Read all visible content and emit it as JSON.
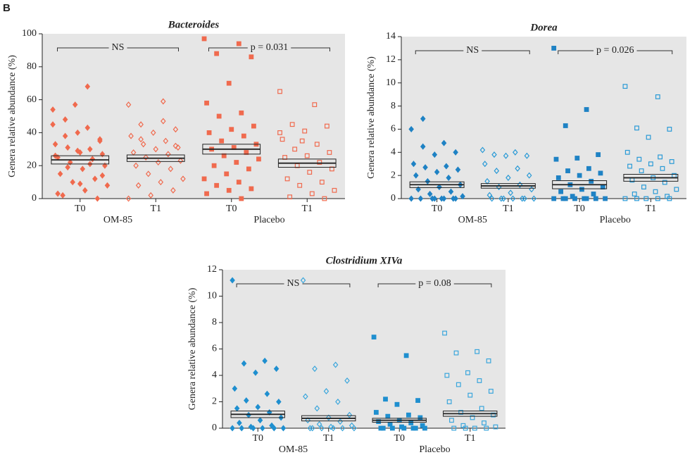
{
  "panel_label": "B",
  "chart_data": [
    {
      "type": "strip",
      "title": "Bacteroides",
      "y_label": "Genera relative abundance (%)",
      "ylim": [
        0,
        100
      ],
      "yticks": [
        0,
        20,
        40,
        60,
        80,
        100
      ],
      "categories": [
        "T0",
        "T1",
        "T0",
        "T1"
      ],
      "group_labels": [
        "OM-85",
        "Placebo"
      ],
      "comparisons": [
        {
          "groups": [
            0,
            1
          ],
          "label": "NS"
        },
        {
          "groups": [
            2,
            3
          ],
          "label": "p = 0.031"
        }
      ],
      "series": [
        {
          "color": "#f06a4e",
          "marker": "diamond",
          "filled": true,
          "mean": 23.5,
          "sem": 2.5,
          "values": [
            45,
            43,
            38,
            36,
            40,
            33,
            30,
            31,
            27,
            28,
            25,
            24,
            22,
            20,
            18,
            15,
            12,
            10,
            8,
            5,
            2,
            0,
            57,
            54,
            68,
            48,
            35,
            29,
            26,
            21,
            19,
            14,
            9,
            3
          ]
        },
        {
          "color": "#f06a4e",
          "marker": "diamond",
          "filled": false,
          "mean": 24.5,
          "sem": 2,
          "values": [
            57,
            59,
            45,
            42,
            40,
            38,
            35,
            33,
            31,
            30,
            28,
            27,
            25,
            23,
            22,
            20,
            18,
            15,
            12,
            10,
            8,
            5,
            2,
            0,
            47,
            36,
            32
          ]
        },
        {
          "color": "#f06a4e",
          "marker": "square",
          "filled": true,
          "mean": 30,
          "sem": 3,
          "values": [
            97,
            94,
            88,
            86,
            70,
            58,
            52,
            50,
            44,
            42,
            40,
            38,
            35,
            33,
            31,
            30,
            28,
            26,
            24,
            22,
            20,
            18,
            15,
            12,
            10,
            8,
            6,
            5,
            3,
            0
          ]
        },
        {
          "color": "#f06a4e",
          "marker": "square",
          "filled": false,
          "mean": 21.5,
          "sem": 2.5,
          "values": [
            65,
            57,
            45,
            44,
            41,
            36,
            33,
            30,
            28,
            26,
            25,
            22,
            20,
            18,
            16,
            12,
            10,
            8,
            5,
            3,
            1,
            0,
            35,
            40
          ]
        }
      ]
    },
    {
      "type": "strip",
      "title": "Dorea",
      "y_label": "Genera relative abundance (%)",
      "ylim": [
        0,
        14
      ],
      "yticks": [
        0,
        2,
        4,
        6,
        8,
        10,
        12,
        14
      ],
      "categories": [
        "T0",
        "T1",
        "T0",
        "T1"
      ],
      "group_labels": [
        "OM-85",
        "Placebo"
      ],
      "comparisons": [
        {
          "groups": [
            0,
            1
          ],
          "label": "NS"
        },
        {
          "groups": [
            2,
            3
          ],
          "label": "p = 0.026"
        }
      ],
      "series": [
        {
          "color": "#1f82c4",
          "marker": "diamond",
          "filled": true,
          "mean": 1.2,
          "sem": 0.25,
          "values": [
            6,
            4.8,
            4.5,
            4,
            3.8,
            3,
            2.8,
            2.7,
            2.5,
            2.3,
            2,
            1.8,
            1.5,
            1.2,
            1,
            0.8,
            0.6,
            0.4,
            0.2,
            0,
            0,
            0,
            0,
            0,
            0,
            6.9,
            0,
            0
          ]
        },
        {
          "color": "#2a9ad6",
          "marker": "diamond",
          "filled": false,
          "mean": 1.1,
          "sem": 0.2,
          "values": [
            4.2,
            4,
            3.8,
            3.7,
            3.7,
            3,
            2.6,
            2.4,
            2,
            1.8,
            1.5,
            1.2,
            1,
            0.8,
            0.5,
            0.3,
            0,
            0,
            0,
            0,
            0,
            0,
            0
          ]
        },
        {
          "color": "#1f82c4",
          "marker": "square",
          "filled": true,
          "mean": 1.2,
          "sem": 0.35,
          "values": [
            13,
            7.7,
            6.3,
            3.8,
            3.5,
            3.4,
            2.6,
            2.4,
            2.2,
            2,
            1.8,
            1.5,
            1.2,
            1,
            0.8,
            0.6,
            0.4,
            0.2,
            0,
            0,
            0,
            0,
            0,
            0,
            0,
            0
          ]
        },
        {
          "color": "#2a9ad6",
          "marker": "square",
          "filled": false,
          "mean": 1.8,
          "sem": 0.3,
          "values": [
            9.7,
            8.8,
            6.1,
            6,
            5.3,
            4,
            3.6,
            3.4,
            3.2,
            3,
            2.8,
            2.6,
            2.4,
            2,
            1.8,
            1.6,
            1.4,
            1,
            0.8,
            0.6,
            0.4,
            0.2,
            0,
            0,
            0,
            0,
            0
          ]
        }
      ]
    },
    {
      "type": "strip",
      "title": "Clostridium XIVa",
      "y_label": "Genera relative abundance (%)",
      "ylim": [
        0,
        12
      ],
      "yticks": [
        0,
        2,
        4,
        6,
        8,
        10,
        12
      ],
      "categories": [
        "T0",
        "T1",
        "T0",
        "T1"
      ],
      "group_labels": [
        "OM-85",
        "Placebo"
      ],
      "comparisons": [
        {
          "groups": [
            0,
            1
          ],
          "label": "NS"
        },
        {
          "groups": [
            2,
            3
          ],
          "label": "p = 0.08"
        }
      ],
      "series": [
        {
          "color": "#1f8fcf",
          "marker": "diamond",
          "filled": true,
          "mean": 1.05,
          "sem": 0.25,
          "values": [
            11.2,
            5.1,
            4.9,
            4.5,
            4.2,
            3,
            2.6,
            2.1,
            2,
            1.6,
            1.5,
            1.2,
            1,
            0.8,
            0.6,
            0.4,
            0.2,
            0.1,
            0,
            0,
            0,
            0,
            0,
            0
          ]
        },
        {
          "color": "#3aa6dc",
          "marker": "diamond",
          "filled": false,
          "mean": 0.75,
          "sem": 0.2,
          "values": [
            11.2,
            4.8,
            4.5,
            3.6,
            2.8,
            2.4,
            2,
            1.5,
            1,
            0.8,
            0.6,
            0.5,
            0.3,
            0.2,
            0.1,
            0,
            0,
            0,
            0,
            0,
            0
          ]
        },
        {
          "color": "#1f8fcf",
          "marker": "square",
          "filled": true,
          "mean": 0.6,
          "sem": 0.15,
          "values": [
            6.9,
            5.5,
            2.2,
            2.1,
            1.8,
            1.2,
            1,
            0.9,
            0.8,
            0.6,
            0.5,
            0.4,
            0.3,
            0.2,
            0.1,
            0,
            0,
            0,
            0,
            0,
            0,
            0
          ]
        },
        {
          "color": "#3aa6dc",
          "marker": "square",
          "filled": false,
          "mean": 1.1,
          "sem": 0.2,
          "values": [
            7.2,
            5.8,
            5.7,
            5.1,
            4.2,
            4,
            3.6,
            3.3,
            2.8,
            2.5,
            2,
            1.5,
            1.2,
            1,
            0.8,
            0.6,
            0.4,
            0.2,
            0.1,
            0,
            0,
            0,
            0
          ]
        }
      ]
    }
  ]
}
